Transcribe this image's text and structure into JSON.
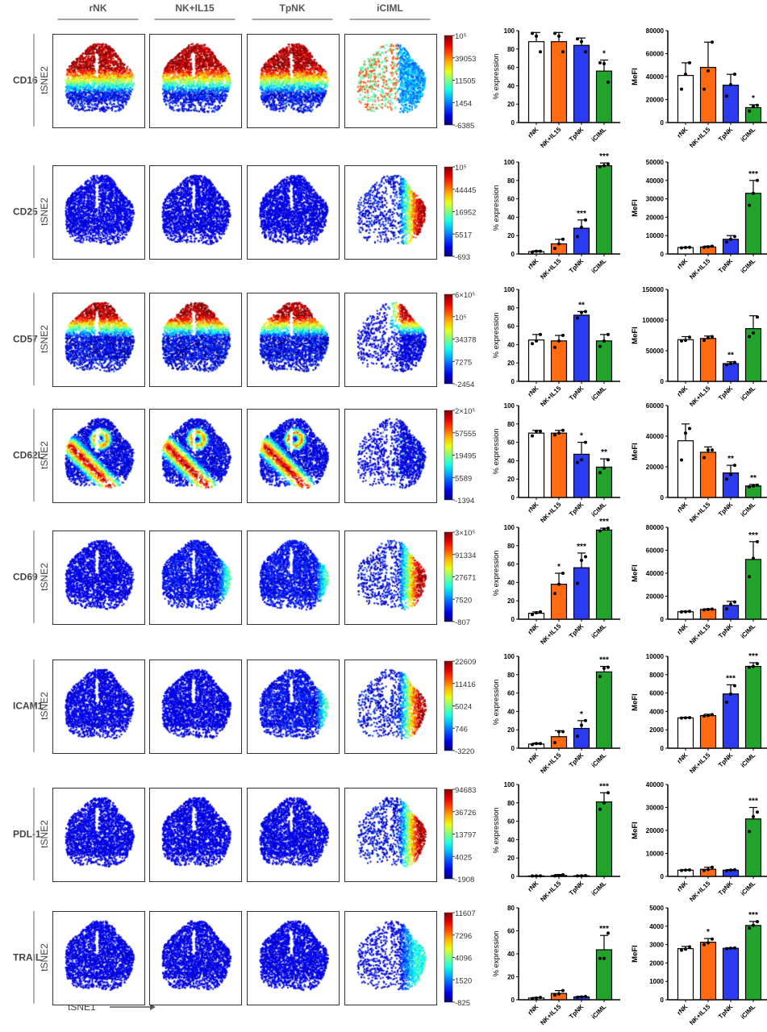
{
  "column_headers": [
    "rNK",
    "NK+IL15",
    "TpNK",
    "iCIML"
  ],
  "axis_labels": {
    "tsne_y": "tSNE2",
    "tsne_x": "tSNE1"
  },
  "colors": {
    "rNK": "#ffffff",
    "NK+IL15": "#ff6a13",
    "TpNK": "#2b3cf0",
    "iCIML": "#22a32c",
    "colormap": "jet"
  },
  "rows": [
    {
      "marker": "CD16",
      "colorbar_ticks": [
        "10⁵",
        "39053",
        "11505",
        "1454",
        "-6385"
      ],
      "tsne_patterns": [
        "top",
        "top",
        "top",
        "iciml-cd16"
      ]
    },
    {
      "marker": "CD25",
      "colorbar_ticks": [
        "10⁵",
        "44445",
        "16952",
        "5517",
        "-693"
      ],
      "tsne_patterns": [
        "low",
        "low",
        "low",
        "right"
      ]
    },
    {
      "marker": "CD57",
      "colorbar_ticks": [
        "6×10⁵",
        "10⁵",
        "34378",
        "7275",
        "-2454"
      ],
      "tsne_patterns": [
        "topband",
        "topband",
        "topband",
        "topright"
      ]
    },
    {
      "marker": "CD62L",
      "colorbar_ticks": [
        "2×10⁵",
        "57555",
        "19495",
        "5589",
        "-1394"
      ],
      "tsne_patterns": [
        "sband",
        "sband",
        "sband",
        "low-sparse"
      ]
    },
    {
      "marker": "CD69",
      "colorbar_ticks": [
        "3×10⁵",
        "91334",
        "27671",
        "7520",
        "-807"
      ],
      "tsne_patterns": [
        "low",
        "lowright",
        "lowright",
        "right"
      ]
    },
    {
      "marker": "ICAM1",
      "colorbar_ticks": [
        "22609",
        "11416",
        "5024",
        "746",
        "-3220"
      ],
      "tsne_patterns": [
        "low",
        "low",
        "lowright",
        "right"
      ]
    },
    {
      "marker": "PDL-1",
      "colorbar_ticks": [
        "94683",
        "36726",
        "13797",
        "4025",
        "-1908"
      ],
      "tsne_patterns": [
        "low",
        "low",
        "low",
        "right"
      ]
    },
    {
      "marker": "TRAIL",
      "colorbar_ticks": [
        "11607",
        "7296",
        "4096",
        "1520",
        "-825"
      ],
      "tsne_patterns": [
        "low",
        "low",
        "low",
        "rightmid"
      ]
    }
  ],
  "chart_data": [
    {
      "type": "bar",
      "marker": "CD16",
      "ylabel": "% expression",
      "ylim": [
        0,
        100
      ],
      "yticks": [
        0,
        20,
        40,
        60,
        80,
        100
      ],
      "categories": [
        "rNK",
        "NK+IL15",
        "TpNK",
        "iCIML"
      ],
      "values": [
        88,
        88,
        84,
        56
      ],
      "error_upper": [
        98,
        98,
        92,
        68
      ],
      "points": [
        [
          97,
          94,
          77
        ],
        [
          97,
          94,
          77
        ],
        [
          91,
          88,
          77
        ],
        [
          65,
          64,
          44
        ]
      ],
      "significance": [
        "",
        "",
        "",
        "*"
      ]
    },
    {
      "type": "bar",
      "marker": "CD16",
      "ylabel": "MeFI",
      "ylim": [
        0,
        80000
      ],
      "yticks": [
        0,
        20000,
        40000,
        60000,
        80000
      ],
      "categories": [
        "rNK",
        "NK+IL15",
        "TpNK",
        "iCIML"
      ],
      "values": [
        41000,
        48000,
        32500,
        13000
      ],
      "error_upper": [
        52000,
        70000,
        42000,
        15500
      ],
      "points": [
        [
          29000,
          42000,
          52000
        ],
        [
          29000,
          45000,
          70000
        ],
        [
          23000,
          33000,
          42000
        ],
        [
          10000,
          14000,
          15000
        ]
      ],
      "significance": [
        "",
        "",
        "",
        "*"
      ]
    },
    {
      "type": "bar",
      "marker": "CD25",
      "ylabel": "% expression",
      "ylim": [
        0,
        100
      ],
      "yticks": [
        0,
        20,
        40,
        60,
        80,
        100
      ],
      "categories": [
        "rNK",
        "NK+IL15",
        "TpNK",
        "iCIML"
      ],
      "values": [
        2.5,
        11,
        28,
        96
      ],
      "error_upper": [
        3.5,
        16,
        37,
        99
      ],
      "points": [
        [
          2,
          3,
          3
        ],
        [
          6,
          11,
          16
        ],
        [
          19,
          29,
          37
        ],
        [
          95,
          96,
          98
        ]
      ],
      "significance": [
        "",
        "",
        "***",
        "***"
      ]
    },
    {
      "type": "bar",
      "marker": "CD25",
      "ylabel": "MeFI",
      "ylim": [
        0,
        50000
      ],
      "yticks": [
        0,
        10000,
        20000,
        30000,
        40000,
        50000
      ],
      "categories": [
        "rNK",
        "NK+IL15",
        "TpNK",
        "iCIML"
      ],
      "values": [
        3500,
        3800,
        8000,
        33000
      ],
      "error_upper": [
        3700,
        4300,
        10000,
        40000
      ],
      "points": [
        [
          3300,
          3500,
          3600
        ],
        [
          3600,
          3900,
          4200
        ],
        [
          6500,
          8000,
          9500
        ],
        [
          26500,
          33000,
          40000
        ]
      ],
      "significance": [
        "",
        "",
        "",
        "***"
      ]
    },
    {
      "type": "bar",
      "marker": "CD57",
      "ylabel": "% expression",
      "ylim": [
        0,
        100
      ],
      "yticks": [
        0,
        20,
        40,
        60,
        80,
        100
      ],
      "categories": [
        "rNK",
        "NK+IL15",
        "TpNK",
        "iCIML"
      ],
      "values": [
        45,
        44,
        72,
        44
      ],
      "error_upper": [
        51,
        50,
        76,
        51
      ],
      "points": [
        [
          41,
          44,
          51
        ],
        [
          37,
          44,
          50
        ],
        [
          69,
          75,
          76
        ],
        [
          38,
          44,
          51
        ]
      ],
      "significance": [
        "",
        "",
        "**",
        ""
      ]
    },
    {
      "type": "bar",
      "marker": "CD57",
      "ylabel": "MeFI",
      "ylim": [
        0,
        150000
      ],
      "yticks": [
        0,
        50000,
        100000,
        150000
      ],
      "categories": [
        "rNK",
        "NK+IL15",
        "TpNK",
        "iCIML"
      ],
      "values": [
        68000,
        70000,
        29000,
        86000
      ],
      "error_upper": [
        73000,
        74000,
        32000,
        107000
      ],
      "points": [
        [
          66000,
          67000,
          72000
        ],
        [
          67000,
          71000,
          73000
        ],
        [
          27000,
          29000,
          31000
        ],
        [
          73000,
          79000,
          105000
        ]
      ],
      "significance": [
        "",
        "",
        "**",
        ""
      ]
    },
    {
      "type": "bar",
      "marker": "CD62L",
      "ylabel": "% expression",
      "ylim": [
        0,
        100
      ],
      "yticks": [
        0,
        20,
        40,
        60,
        80,
        100
      ],
      "categories": [
        "rNK",
        "NK+IL15",
        "TpNK",
        "iCIML"
      ],
      "values": [
        70,
        70,
        47,
        33
      ],
      "error_upper": [
        73,
        73,
        60,
        42
      ],
      "points": [
        [
          67,
          72,
          72
        ],
        [
          68,
          70,
          73
        ],
        [
          38,
          41,
          60
        ],
        [
          27,
          32,
          41
        ]
      ],
      "significance": [
        "",
        "",
        "*",
        "**"
      ]
    },
    {
      "type": "bar",
      "marker": "CD62L",
      "ylabel": "MeFI",
      "ylim": [
        0,
        60000
      ],
      "yticks": [
        0,
        20000,
        40000,
        60000
      ],
      "categories": [
        "rNK",
        "NK+IL15",
        "TpNK",
        "iCIML"
      ],
      "values": [
        37000,
        29500,
        16000,
        7500
      ],
      "error_upper": [
        48000,
        33000,
        21000,
        8500
      ],
      "points": [
        [
          24500,
          42000,
          45000
        ],
        [
          26000,
          31000,
          31000
        ],
        [
          12000,
          15000,
          21000
        ],
        [
          7000,
          7500,
          8000
        ]
      ],
      "significance": [
        "",
        "",
        "**",
        "**"
      ]
    },
    {
      "type": "bar",
      "marker": "CD69",
      "ylabel": "% expression",
      "ylim": [
        0,
        100
      ],
      "yticks": [
        0,
        20,
        40,
        60,
        80,
        100
      ],
      "categories": [
        "rNK",
        "NK+IL15",
        "TpNK",
        "iCIML"
      ],
      "values": [
        6.5,
        38,
        56,
        97
      ],
      "error_upper": [
        8,
        50,
        72,
        99
      ],
      "points": [
        [
          5,
          7,
          8
        ],
        [
          28,
          38,
          50
        ],
        [
          39,
          64,
          68
        ],
        [
          96,
          98,
          99
        ]
      ],
      "significance": [
        "",
        "*",
        "***",
        "***"
      ]
    },
    {
      "type": "bar",
      "marker": "CD69",
      "ylabel": "MeFI",
      "ylim": [
        0,
        80000
      ],
      "yticks": [
        0,
        20000,
        40000,
        60000,
        80000
      ],
      "categories": [
        "rNK",
        "NK+IL15",
        "TpNK",
        "iCIML"
      ],
      "values": [
        6500,
        8500,
        12000,
        52000
      ],
      "error_upper": [
        7000,
        9000,
        15500,
        67500
      ],
      "points": [
        [
          6300,
          6500,
          6800
        ],
        [
          8200,
          8500,
          8800
        ],
        [
          9000,
          13000,
          15000
        ],
        [
          37000,
          53000,
          67500
        ]
      ],
      "significance": [
        "",
        "",
        "",
        "***"
      ]
    },
    {
      "type": "bar",
      "marker": "ICAM1",
      "ylabel": "% expression",
      "ylim": [
        0,
        100
      ],
      "yticks": [
        0,
        20,
        40,
        60,
        80,
        100
      ],
      "categories": [
        "rNK",
        "NK+IL15",
        "TpNK",
        "iCIML"
      ],
      "values": [
        4.5,
        12.5,
        21.5,
        83
      ],
      "error_upper": [
        5.5,
        19,
        30,
        89
      ],
      "points": [
        [
          4,
          5,
          5
        ],
        [
          6,
          18,
          18
        ],
        [
          13,
          25,
          30
        ],
        [
          78,
          87,
          88
        ]
      ],
      "significance": [
        "",
        "",
        "*",
        "***"
      ]
    },
    {
      "type": "bar",
      "marker": "ICAM1",
      "ylabel": "MeFI",
      "ylim": [
        0,
        10000
      ],
      "yticks": [
        0,
        2000,
        4000,
        6000,
        8000,
        10000
      ],
      "categories": [
        "rNK",
        "NK+IL15",
        "TpNK",
        "iCIML"
      ],
      "values": [
        3300,
        3550,
        5900,
        8900
      ],
      "error_upper": [
        3350,
        3700,
        6900,
        9300
      ],
      "points": [
        [
          3280,
          3300,
          3320
        ],
        [
          3500,
          3550,
          3650
        ],
        [
          5000,
          5900,
          6800
        ],
        [
          8800,
          8900,
          9200
        ]
      ],
      "significance": [
        "",
        "",
        "***",
        "***"
      ]
    },
    {
      "type": "bar",
      "marker": "PDL-1",
      "ylabel": "% expression",
      "ylim": [
        0,
        100
      ],
      "yticks": [
        0,
        20,
        40,
        60,
        80,
        100
      ],
      "categories": [
        "rNK",
        "NK+IL15",
        "TpNK",
        "iCIML"
      ],
      "values": [
        0.5,
        1,
        0.7,
        81
      ],
      "error_upper": [
        0.7,
        2,
        1,
        91
      ],
      "points": [
        [
          0.4,
          0.5,
          0.6
        ],
        [
          0.6,
          1,
          1.8
        ],
        [
          0.5,
          0.7,
          0.9
        ],
        [
          73,
          80,
          91
        ]
      ],
      "significance": [
        "",
        "",
        "",
        "***"
      ]
    },
    {
      "type": "bar",
      "marker": "PDL-1",
      "ylabel": "MeFI",
      "ylim": [
        0,
        40000
      ],
      "yticks": [
        0,
        10000,
        20000,
        30000,
        40000
      ],
      "categories": [
        "rNK",
        "NK+IL15",
        "TpNK",
        "iCIML"
      ],
      "values": [
        2700,
        3100,
        2700,
        25000
      ],
      "error_upper": [
        2900,
        4000,
        3000,
        30000
      ],
      "points": [
        [
          2600,
          2700,
          2800
        ],
        [
          2600,
          3000,
          4000
        ],
        [
          2500,
          2700,
          2900
        ],
        [
          19500,
          26000,
          28000
        ]
      ],
      "significance": [
        "",
        "",
        "",
        "***"
      ]
    },
    {
      "type": "bar",
      "marker": "TRAIL",
      "ylabel": "% expression",
      "ylim": [
        0,
        80
      ],
      "yticks": [
        0,
        20,
        40,
        60,
        80
      ],
      "categories": [
        "rNK",
        "NK+IL15",
        "TpNK",
        "iCIML"
      ],
      "values": [
        1.5,
        5.5,
        2.5,
        43.5
      ],
      "error_upper": [
        2,
        8,
        3,
        56
      ],
      "points": [
        [
          1,
          1.5,
          2
        ],
        [
          4,
          5,
          8
        ],
        [
          2.2,
          2.5,
          2.8
        ],
        [
          36,
          36,
          58
        ]
      ],
      "significance": [
        "",
        "",
        "",
        "***"
      ]
    },
    {
      "type": "bar",
      "marker": "TRAIL",
      "ylabel": "MeFI",
      "ylim": [
        0,
        5000
      ],
      "yticks": [
        0,
        1000,
        2000,
        3000,
        4000,
        5000
      ],
      "categories": [
        "rNK",
        "NK+IL15",
        "TpNK",
        "iCIML"
      ],
      "values": [
        2780,
        3130,
        2800,
        4040
      ],
      "error_upper": [
        2900,
        3330,
        2830,
        4260
      ],
      "points": [
        [
          2700,
          2750,
          2880
        ],
        [
          3000,
          3100,
          3300
        ],
        [
          2780,
          2800,
          2820
        ],
        [
          3900,
          4050,
          4250
        ]
      ],
      "significance": [
        "*",
        "*",
        "",
        ""
      ],
      "significance_note": "",
      "_": ""
    }
  ]
}
